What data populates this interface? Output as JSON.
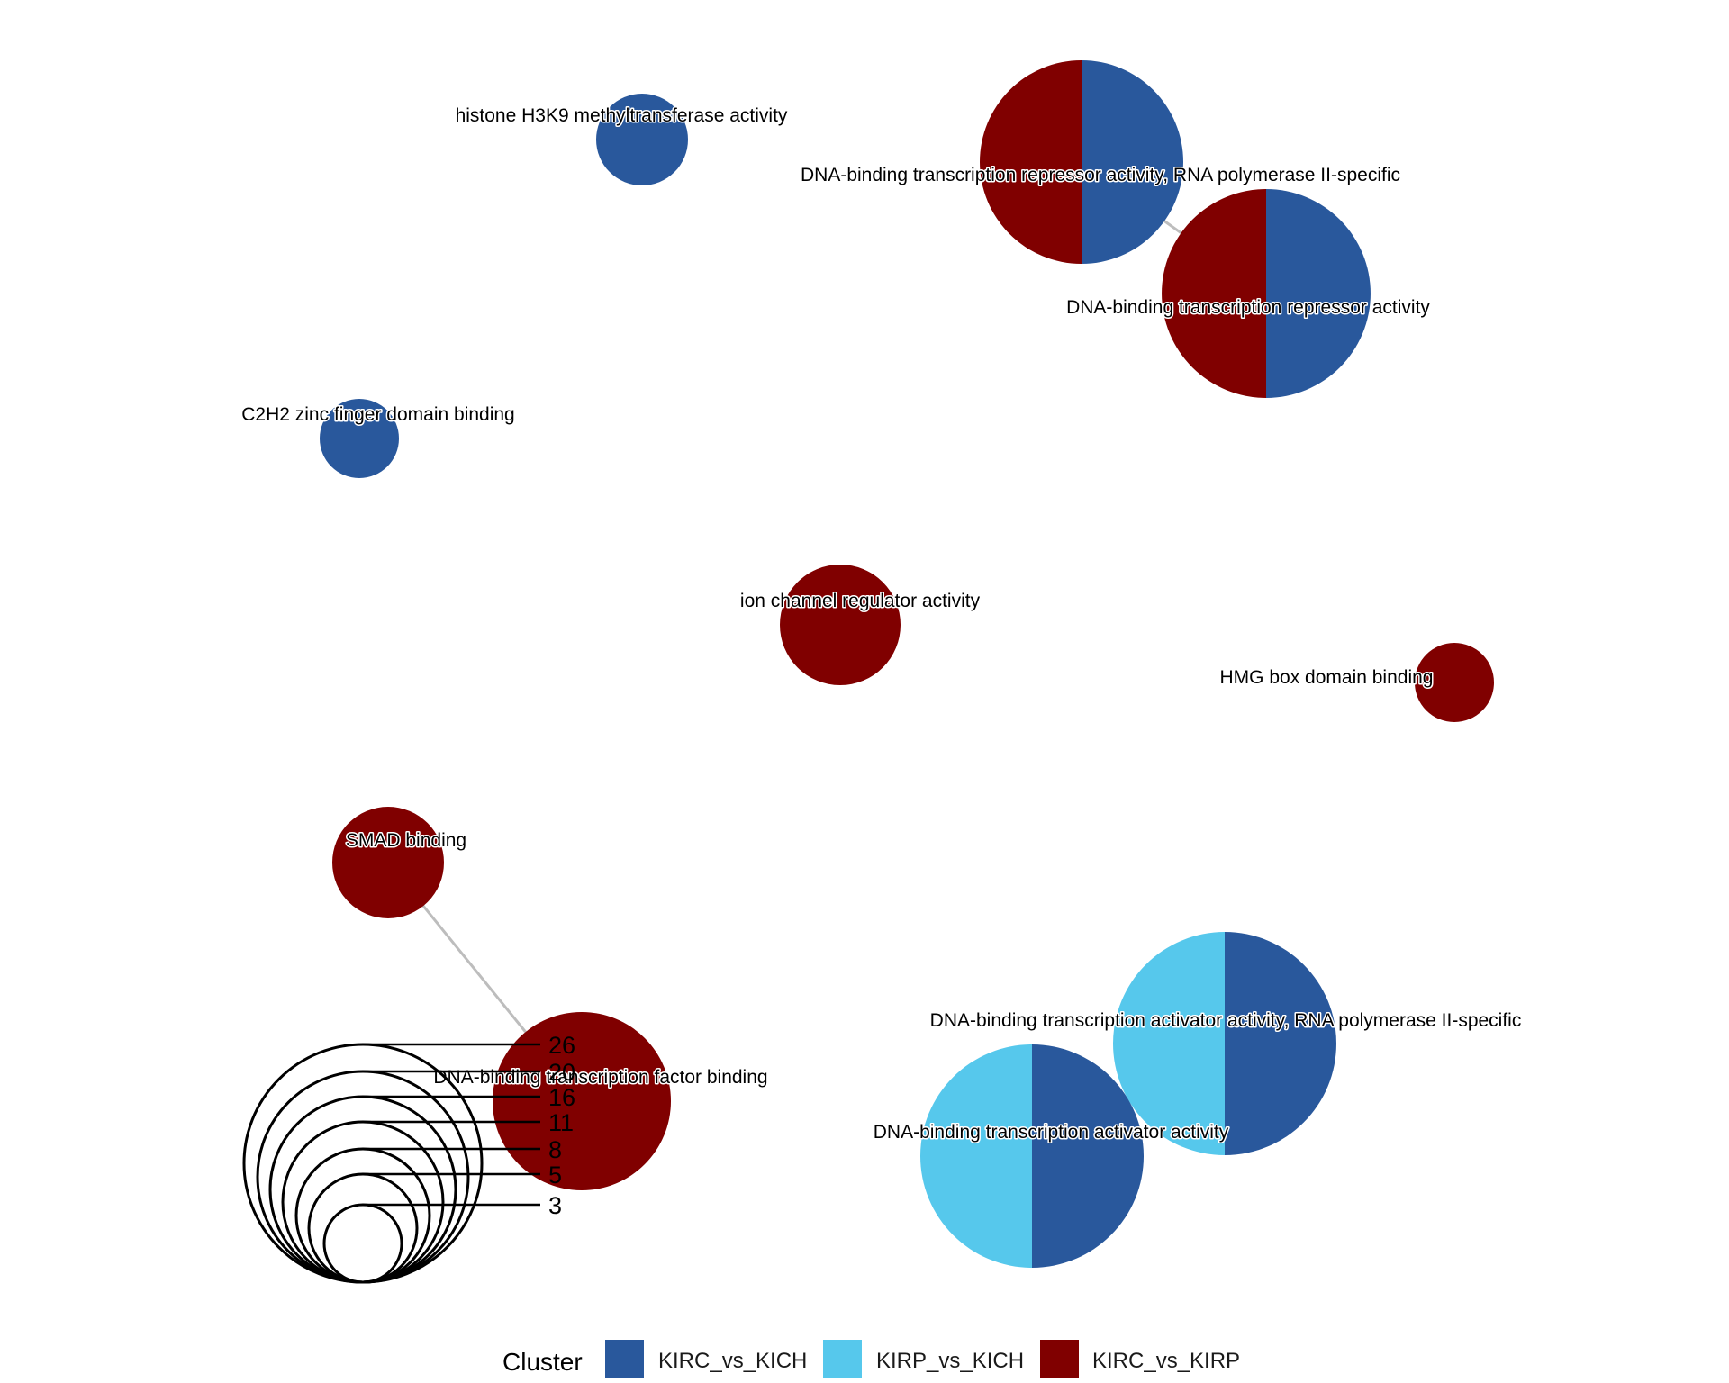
{
  "chart_data": {
    "type": "network-pie",
    "title": "",
    "legend": {
      "title": "Cluster",
      "placement": "bottom",
      "items": [
        {
          "name": "KIRC_vs_KICH",
          "color": "#29589C"
        },
        {
          "name": "KIRP_vs_KICH",
          "color": "#56C8EC"
        },
        {
          "name": "KIRC_vs_KIRP",
          "color": "#800000"
        }
      ]
    },
    "size_legend": {
      "values": [
        26,
        20,
        16,
        11,
        8,
        5,
        3
      ]
    },
    "nodes": [
      {
        "id": "h3k9",
        "label": "histone H3K9 methyltransferase activity",
        "size": 5,
        "clusters": [
          "KIRC_vs_KICH"
        ]
      },
      {
        "id": "rep2",
        "label": "DNA-binding transcription repressor activity, RNA polymerase II-specific",
        "size": 26,
        "clusters": [
          "KIRC_vs_KICH",
          "KIRC_vs_KIRP"
        ]
      },
      {
        "id": "rep",
        "label": "DNA-binding transcription repressor activity",
        "size": 26,
        "clusters": [
          "KIRC_vs_KICH",
          "KIRC_vs_KIRP"
        ]
      },
      {
        "id": "c2h2",
        "label": "C2H2 zinc finger domain binding",
        "size": 3,
        "clusters": [
          "KIRC_vs_KICH"
        ]
      },
      {
        "id": "ion",
        "label": "ion channel regulator activity",
        "size": 8,
        "clusters": [
          "KIRC_vs_KIRP"
        ]
      },
      {
        "id": "hmg",
        "label": "HMG box domain binding",
        "size": 3,
        "clusters": [
          "KIRC_vs_KIRP"
        ]
      },
      {
        "id": "smad",
        "label": "SMAD binding",
        "size": 6,
        "clusters": [
          "KIRC_vs_KIRP"
        ]
      },
      {
        "id": "tfb",
        "label": "DNA-binding transcription factor binding",
        "size": 18,
        "clusters": [
          "KIRC_vs_KIRP"
        ]
      },
      {
        "id": "act2",
        "label": "DNA-binding transcription activator activity, RNA polymerase II-specific",
        "size": 23,
        "clusters": [
          "KIRC_vs_KICH",
          "KIRP_vs_KICH"
        ]
      },
      {
        "id": "act",
        "label": "DNA-binding transcription activator activity",
        "size": 23,
        "clusters": [
          "KIRC_vs_KICH",
          "KIRP_vs_KICH"
        ]
      }
    ],
    "edges": [
      {
        "source": "rep2",
        "target": "rep"
      },
      {
        "source": "smad",
        "target": "tfb"
      }
    ]
  }
}
